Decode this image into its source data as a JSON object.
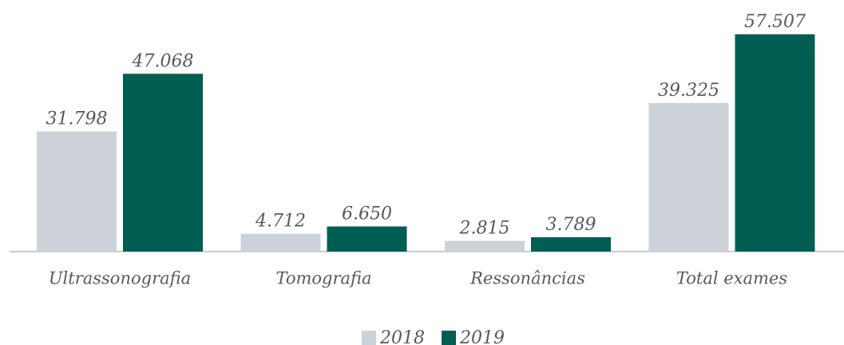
{
  "chart_data": {
    "type": "bar",
    "categories": [
      "Ultrassonografia",
      "Tomografia",
      "Ressonâncias",
      "Total exames"
    ],
    "series": [
      {
        "name": "2018",
        "color": "#cdd2d8",
        "values": [
          31798,
          4712,
          2815,
          39325
        ],
        "value_labels": [
          "31.798",
          "4.712",
          "2.815",
          "39.325"
        ]
      },
      {
        "name": "2019",
        "color": "#005f52",
        "values": [
          47068,
          6650,
          3789,
          57507
        ],
        "value_labels": [
          "47.068",
          "6.650",
          "3.789",
          "57.507"
        ]
      }
    ]
  }
}
